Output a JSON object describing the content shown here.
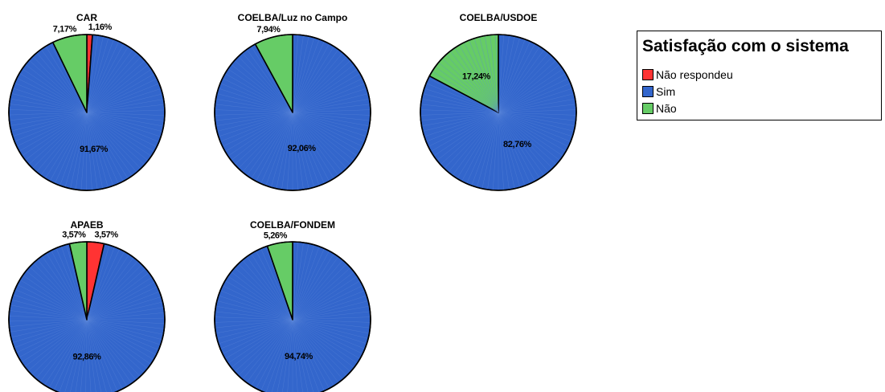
{
  "legend": {
    "title": "Satisfação com o sistema",
    "items": [
      {
        "label": "Não respondeu",
        "color": "#ff3333"
      },
      {
        "label": "Sim",
        "color": "#3366cc"
      },
      {
        "label": "Não",
        "color": "#66cc66"
      }
    ]
  },
  "chart_data": [
    {
      "type": "pie",
      "title": "CAR",
      "slices": [
        {
          "category": "Não respondeu",
          "value": 1.16,
          "label": "1,16%"
        },
        {
          "category": "Sim",
          "value": 91.67,
          "label": "91,67%"
        },
        {
          "category": "Não",
          "value": 7.17,
          "label": "7,17%"
        }
      ]
    },
    {
      "type": "pie",
      "title": "COELBA/Luz no Campo",
      "slices": [
        {
          "category": "Sim",
          "value": 92.06,
          "label": "92,06%"
        },
        {
          "category": "Não",
          "value": 7.94,
          "label": "7,94%"
        }
      ]
    },
    {
      "type": "pie",
      "title": "COELBA/USDOE",
      "slices": [
        {
          "category": "Sim",
          "value": 82.76,
          "label": "82,76%"
        },
        {
          "category": "Não",
          "value": 17.24,
          "label": "17,24%"
        }
      ]
    },
    {
      "type": "pie",
      "title": "APAEB",
      "slices": [
        {
          "category": "Não respondeu",
          "value": 3.57,
          "label": "3,57%"
        },
        {
          "category": "Sim",
          "value": 92.86,
          "label": "92,86%"
        },
        {
          "category": "Não",
          "value": 3.57,
          "label": "3,57%"
        }
      ]
    },
    {
      "type": "pie",
      "title": "COELBA/FONDEM",
      "slices": [
        {
          "category": "Sim",
          "value": 94.74,
          "label": "94,74%"
        },
        {
          "category": "Não",
          "value": 5.26,
          "label": "5,26%"
        }
      ]
    }
  ]
}
